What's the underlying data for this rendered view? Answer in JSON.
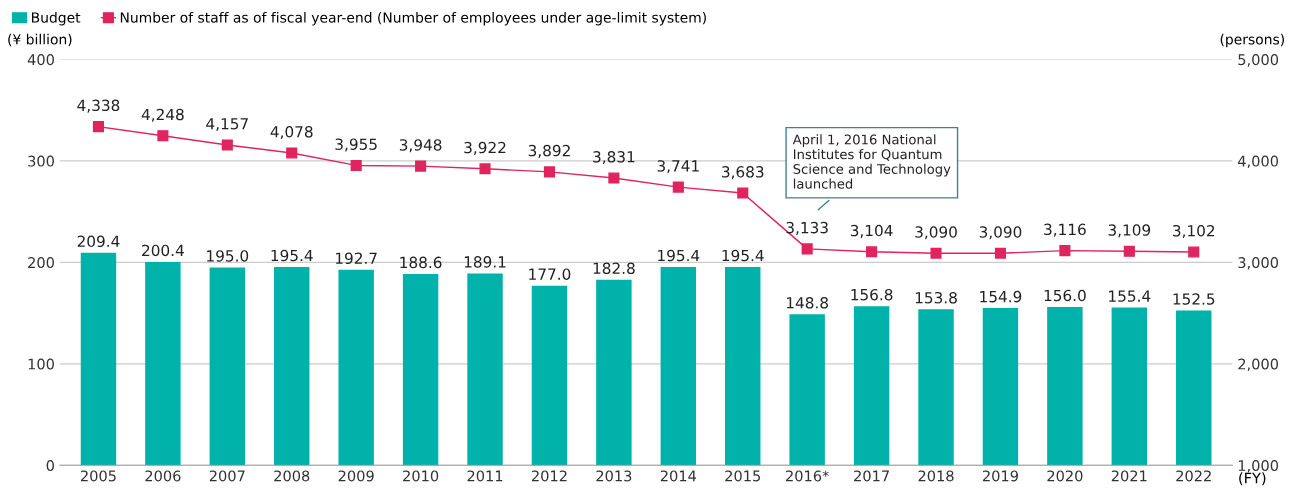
{
  "chart_data": {
    "type": "bar",
    "categories": [
      "2005",
      "2006",
      "2007",
      "2008",
      "2009",
      "2010",
      "2011",
      "2012",
      "2013",
      "2014",
      "2015",
      "2016*",
      "2017",
      "2018",
      "2019",
      "2020",
      "2021",
      "2022"
    ],
    "series": [
      {
        "name": "Budget",
        "color": "#00b2a9",
        "values": [
          209.4,
          200.4,
          195.0,
          195.4,
          192.7,
          188.6,
          189.1,
          177.0,
          182.8,
          195.4,
          195.4,
          148.8,
          156.8,
          153.8,
          154.9,
          156.0,
          155.4,
          152.5
        ],
        "value_labels": [
          "209.4",
          "200.4",
          "195.0",
          "195.4",
          "192.7",
          "188.6",
          "189.1",
          "177.0",
          "182.8",
          "195.4",
          "195.4",
          "148.8",
          "156.8",
          "153.8",
          "154.9",
          "156.0",
          "155.4",
          "152.5"
        ]
      },
      {
        "name": "Number of staff as of fiscal year-end (Number of employees under age-limit system)",
        "type": "line",
        "axis": "y2",
        "color": "#e0245e",
        "values": [
          4338,
          4248,
          4157,
          4078,
          3955,
          3948,
          3922,
          3892,
          3831,
          3741,
          3683,
          3133,
          3104,
          3090,
          3090,
          3116,
          3109,
          3102
        ],
        "value_labels": [
          "4,338",
          "4,248",
          "4,157",
          "4,078",
          "3,955",
          "3,948",
          "3,922",
          "3,892",
          "3,831",
          "3,741",
          "3,683",
          "3,133",
          "3,104",
          "3,090",
          "3,090",
          "3,116",
          "3,109",
          "3,102"
        ]
      }
    ],
    "ylabel": "(¥ billion)",
    "y2label": "(persons)",
    "xlabel": "(FY)",
    "ylim": [
      0,
      400
    ],
    "yticks": [
      0,
      100,
      200,
      300,
      400
    ],
    "y2lim": [
      1000,
      5000
    ],
    "y2ticks": [
      {
        "value": 1000,
        "label": "1,000"
      },
      {
        "value": 2000,
        "label": "2,000"
      },
      {
        "value": 3000,
        "label": "3,000"
      },
      {
        "value": 4000,
        "label": "4,000"
      },
      {
        "value": 5000,
        "label": "5,000"
      }
    ],
    "annotations": [
      "April 1, 2016 National\nInstitutes for Quantum\nScience and Technology\nlaunched"
    ],
    "grid": "y",
    "legend": "top left",
    "marker": "square",
    "line_style": "solid"
  }
}
